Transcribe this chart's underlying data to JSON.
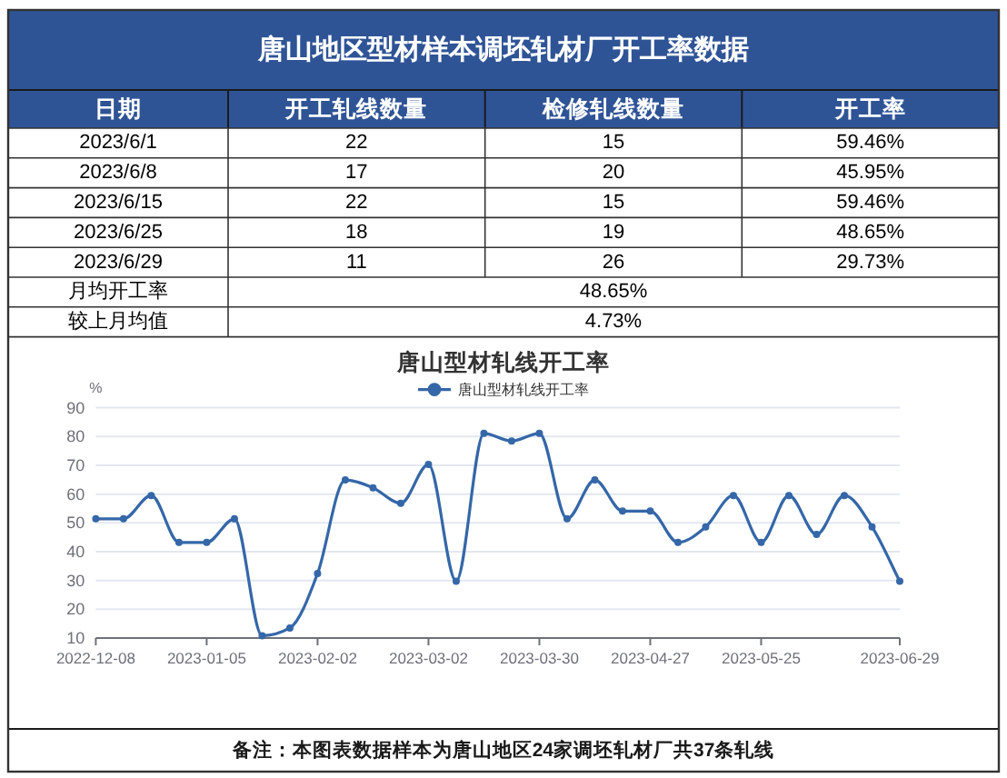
{
  "chart_data": [
    {
      "type": "other",
      "title": "唐山地区型材样本调坯轧材厂开工率数据",
      "categories": [
        "日期",
        "开工轧线数量",
        "检修轧线数量",
        "开工率"
      ],
      "y_categories": [
        "2023/6/1",
        "2023/6/8",
        "2023/6/15",
        "2023/6/25",
        "2023/6/29",
        "月均开工率",
        "较上月均值"
      ],
      "cell_labels": [
        [
          "22",
          "15",
          "59.46%"
        ],
        [
          "17",
          "20",
          "45.95%"
        ],
        [
          "22",
          "15",
          "59.46%"
        ],
        [
          "18",
          "19",
          "48.65%"
        ],
        [
          "11",
          "26",
          "29.73%"
        ],
        [
          "48.65%",
          null,
          null
        ],
        [
          "4.73%",
          null,
          null
        ]
      ]
    },
    {
      "type": "line",
      "title": "唐山型材轧线开工率",
      "ylabel": "%",
      "categories": [
        "2022-12-08",
        null,
        null,
        null,
        "2023-01-05",
        null,
        null,
        null,
        "2023-02-02",
        null,
        null,
        null,
        "2023-03-02",
        null,
        null,
        null,
        "2023-03-30",
        null,
        null,
        null,
        "2023-04-27",
        null,
        null,
        null,
        "2023-05-25",
        null,
        null,
        null,
        null,
        "2023-06-29"
      ],
      "series": [
        {
          "name": "唐山型材轧线开工率",
          "color": "#3567a8",
          "values": [
            51.4,
            51.4,
            59.5,
            43.2,
            43.2,
            51.4,
            10.8,
            13.5,
            32.4,
            64.9,
            62.2,
            56.8,
            70.3,
            29.7,
            81.1,
            78.4,
            81.1,
            51.4,
            64.9,
            54.1,
            54.1,
            43.2,
            48.6,
            59.5,
            43.2,
            59.5,
            46.0,
            59.5,
            48.6,
            29.7
          ]
        }
      ],
      "ylim": [
        10,
        90
      ],
      "yticks": [
        10,
        20,
        30,
        40,
        50,
        60,
        70,
        80,
        90
      ],
      "grid": "y",
      "legend": "top",
      "marker": "circle",
      "annotations": [
        "备注：本图表数据样本为唐山地区24家调坯轧材厂共37条轧线"
      ]
    }
  ]
}
